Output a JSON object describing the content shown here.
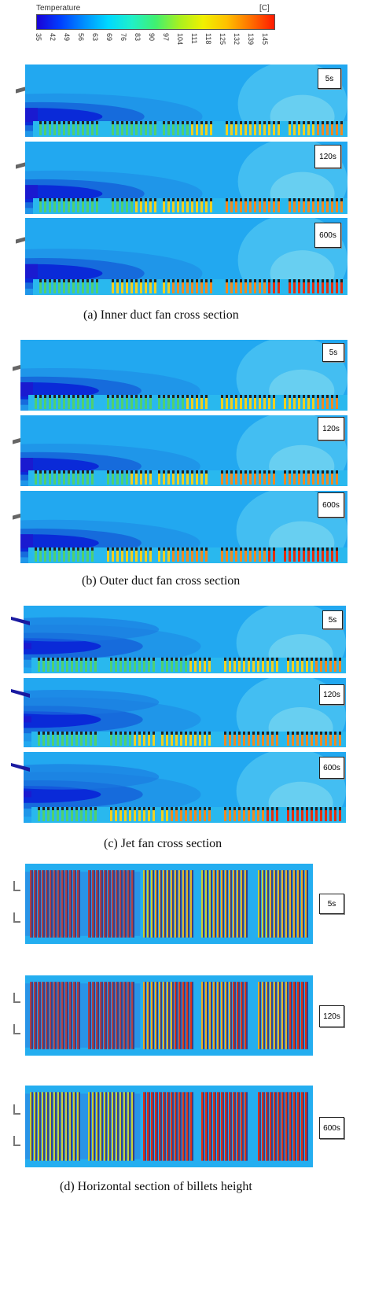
{
  "colorbar": {
    "title": "Temperature",
    "unit": "[C]",
    "ticks": [
      "35",
      "42",
      "49",
      "56",
      "63",
      "69",
      "76",
      "83",
      "90",
      "97",
      "104",
      "111",
      "118",
      "125",
      "132",
      "139",
      "145"
    ]
  },
  "sections": [
    {
      "caption": "(a) Inner duct fan cross section",
      "fan": "inner-duct",
      "panels": [
        {
          "label": "5s"
        },
        {
          "label": "120s"
        },
        {
          "label": "600s"
        }
      ]
    },
    {
      "caption": "(b) Outer duct fan cross section",
      "fan": "outer-duct",
      "panels": [
        {
          "label": "5s"
        },
        {
          "label": "120s"
        },
        {
          "label": "600s"
        }
      ]
    },
    {
      "caption": "(c) Jet fan cross section",
      "fan": "jet",
      "panels": [
        {
          "label": "5s"
        },
        {
          "label": "120s"
        },
        {
          "label": "600s"
        }
      ]
    },
    {
      "caption": "(d) Horizontal section of billets height",
      "fan": "horizontal",
      "panels": [
        {
          "label": "5s"
        },
        {
          "label": "120s"
        },
        {
          "label": "600s"
        }
      ]
    }
  ],
  "colors": {
    "background_field": "#1fb4f2",
    "cool_jet": "#0a2ad8",
    "hot": "#e03010",
    "warm": "#f0d020",
    "billet": "#3a3f88"
  }
}
